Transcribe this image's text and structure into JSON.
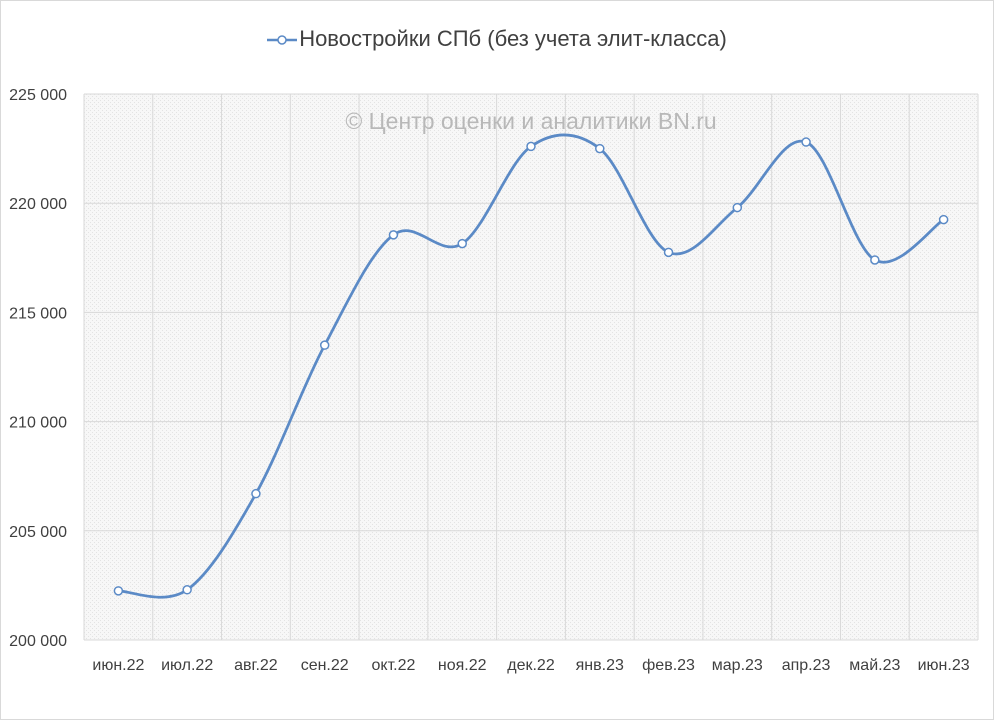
{
  "chart_data": {
    "type": "line",
    "title": "",
    "xlabel": "",
    "ylabel": "",
    "categories": [
      "июн.22",
      "июл.22",
      "авг.22",
      "сен.22",
      "окт.22",
      "ноя.22",
      "дек.22",
      "янв.23",
      "фев.23",
      "мар.23",
      "апр.23",
      "май.23",
      "июн.23"
    ],
    "series": [
      {
        "name": "Новостройки СПб (без учета элит-класса)",
        "values": [
          202250,
          202300,
          206700,
          213500,
          218550,
          218150,
          222600,
          222500,
          217750,
          219800,
          222800,
          217400,
          219250
        ]
      }
    ],
    "ylim": [
      200000,
      225000
    ],
    "yticks": [
      200000,
      205000,
      210000,
      215000,
      220000,
      225000
    ],
    "ytick_labels": [
      "200 000",
      "205 000",
      "210 000",
      "215 000",
      "220 000",
      "225 000"
    ],
    "watermark": "© Центр оценки и аналитики BN.ru",
    "grid": true,
    "legend_position": "top",
    "colors": {
      "line": "#5b8ac6",
      "marker_fill": "#ffffff",
      "grid": "#d9d9d9",
      "plot_bg": "#f2f2f2",
      "watermark": "#b8b8b8"
    }
  }
}
